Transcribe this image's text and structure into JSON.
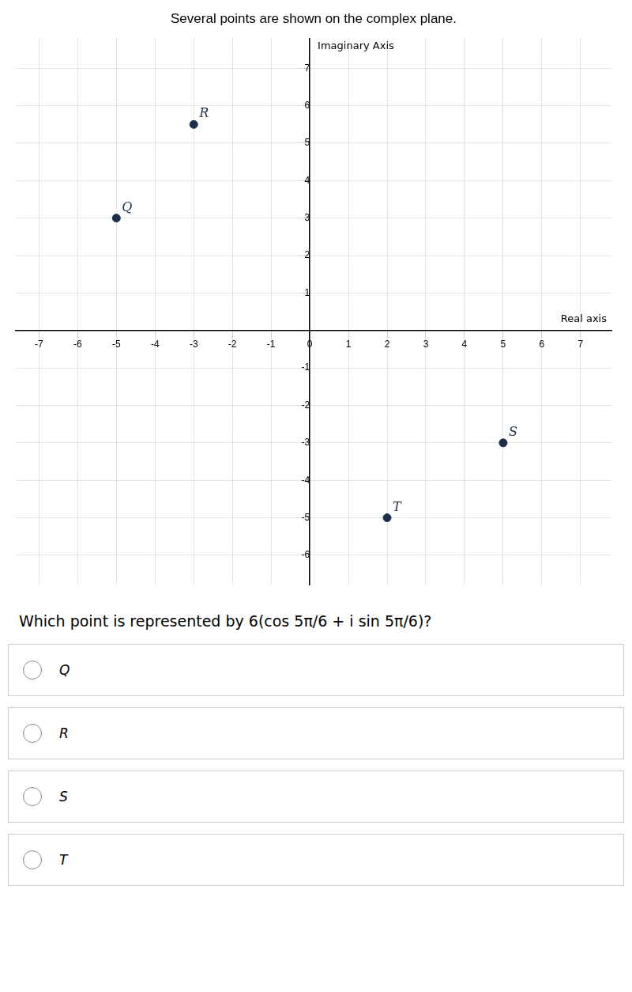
{
  "chart_data": {
    "type": "scatter",
    "title": "Several points are shown on the complex plane.",
    "xlabel": "Real axis",
    "ylabel": "Imaginary Axis",
    "x": [
      -5,
      -3,
      5,
      2
    ],
    "values": [
      3,
      5.5,
      -3,
      -5
    ],
    "point_labels": [
      "Q",
      "R",
      "S",
      "T"
    ],
    "color": "#1a2e4a",
    "xlim": [
      -7.6,
      7.8
    ],
    "ylim": [
      -6.8,
      7.8
    ],
    "xticks": [
      -7,
      -6,
      -5,
      -4,
      -3,
      -2,
      -1,
      0,
      1,
      2,
      3,
      4,
      5,
      6,
      7
    ],
    "yticks": [
      -6,
      -5,
      -4,
      -3,
      -2,
      -1,
      1,
      2,
      3,
      4,
      5,
      6,
      7
    ],
    "grid": true,
    "question": "Which point is represented by 6(cos 5π/6 + i sin 5π/6)?",
    "choices": [
      "Q",
      "R",
      "S",
      "T"
    ]
  }
}
